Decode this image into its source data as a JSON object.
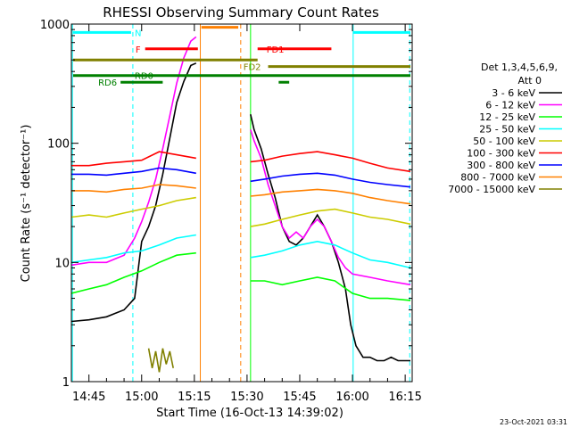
{
  "chart_data": {
    "type": "line",
    "title": "RHESSI Observing Summary Count Rates",
    "xlabel": "Start Time (16-Oct-13 14:39:02)",
    "ylabel": "Count Rate (s⁻¹ detector⁻¹)",
    "yscale": "log",
    "ylim": [
      1,
      1000
    ],
    "xlim_minutes": [
      40,
      137
    ],
    "x_ticks": [
      {
        "label": "14:45",
        "minutes": 45
      },
      {
        "label": "15:00",
        "minutes": 60
      },
      {
        "label": "15:15",
        "minutes": 75
      },
      {
        "label": "15:30",
        "minutes": 90
      },
      {
        "label": "15:45",
        "minutes": 105
      },
      {
        "label": "16:00",
        "minutes": 120
      },
      {
        "label": "16:15",
        "minutes": 135
      }
    ],
    "y_ticks": [
      {
        "label": "1",
        "value": 1
      },
      {
        "label": "10",
        "value": 10
      },
      {
        "label": "100",
        "value": 100
      },
      {
        "label": "1000",
        "value": 1000
      }
    ],
    "legend_title": [
      "Det 1,3,4,5,6,9,",
      "Att 0"
    ],
    "legend_position": "right",
    "series": [
      {
        "name": "3 - 6 keV",
        "color": "#000000",
        "x": [
          40,
          45,
          50,
          55,
          58,
          60,
          62,
          64,
          66,
          68,
          70,
          72,
          74,
          75.5,
          91,
          92,
          94,
          96,
          98,
          100,
          102,
          104,
          106,
          108,
          110,
          112,
          114,
          116,
          118,
          119.5,
          121,
          123,
          125,
          127,
          129,
          131,
          133,
          135,
          136.5
        ],
        "y": [
          3.2,
          3.3,
          3.5,
          4,
          5,
          15,
          20,
          30,
          55,
          110,
          220,
          330,
          450,
          470,
          175,
          130,
          90,
          55,
          35,
          20,
          15,
          14,
          16,
          20,
          25,
          20,
          15,
          10,
          6,
          3,
          2,
          1.6,
          1.6,
          1.5,
          1.5,
          1.6,
          1.5,
          1.5,
          1.5
        ]
      },
      {
        "name": "6 - 12 keV",
        "color": "#ff00ff",
        "x": [
          40,
          45,
          50,
          55,
          58,
          60,
          62,
          64,
          66,
          68,
          70,
          72,
          74,
          75.5,
          91,
          92,
          94,
          96,
          98,
          100,
          102,
          104,
          106,
          108,
          110,
          112,
          114,
          116,
          118,
          120,
          125,
          130,
          136.5
        ],
        "y": [
          9.5,
          10,
          10,
          11.5,
          16,
          22,
          32,
          50,
          90,
          170,
          320,
          520,
          720,
          780,
          130,
          105,
          75,
          45,
          30,
          20,
          16,
          18,
          16,
          20,
          23,
          20,
          15,
          11,
          9,
          8,
          7.5,
          7,
          6.5
        ]
      },
      {
        "name": "12 - 25 keV",
        "color": "#00ff00",
        "x": [
          40,
          45,
          50,
          55,
          60,
          65,
          70,
          75.5,
          91,
          95,
          100,
          105,
          110,
          115,
          120,
          125,
          130,
          136.5
        ],
        "y": [
          5.5,
          6,
          6.5,
          7.5,
          8.5,
          10,
          11.5,
          12,
          7,
          7,
          6.5,
          7,
          7.5,
          7,
          5.5,
          5,
          5,
          4.8
        ]
      },
      {
        "name": "25 - 50 keV",
        "color": "#00ffff",
        "x": [
          40,
          45,
          50,
          55,
          60,
          65,
          70,
          75.5,
          91,
          95,
          100,
          105,
          110,
          115,
          120,
          125,
          130,
          136.5
        ],
        "y": [
          10,
          10.5,
          11,
          12,
          12.5,
          14,
          16,
          17,
          11,
          11.5,
          12.5,
          14,
          15,
          14,
          12,
          10.5,
          10,
          9
        ]
      },
      {
        "name": "50 - 100 keV",
        "color": "#cccc00",
        "x": [
          40,
          45,
          50,
          55,
          60,
          65,
          70,
          75.5,
          91,
          95,
          100,
          105,
          110,
          115,
          120,
          125,
          130,
          136.5
        ],
        "y": [
          24,
          25,
          24,
          26,
          28,
          30,
          33,
          35,
          20,
          21,
          23,
          25,
          27,
          28,
          26,
          24,
          23,
          21
        ]
      },
      {
        "name": "100 - 300 keV",
        "color": "#ff0000",
        "x": [
          40,
          45,
          50,
          55,
          60,
          65,
          70,
          75.5,
          91,
          95,
          100,
          105,
          110,
          115,
          120,
          125,
          130,
          136.5
        ],
        "y": [
          65,
          65,
          68,
          70,
          72,
          85,
          80,
          75,
          70,
          72,
          78,
          82,
          85,
          80,
          75,
          68,
          62,
          58
        ]
      },
      {
        "name": "300 - 800 keV",
        "color": "#0000ff",
        "x": [
          40,
          45,
          50,
          55,
          60,
          65,
          70,
          75.5,
          91,
          95,
          100,
          105,
          110,
          115,
          120,
          125,
          130,
          136.5
        ],
        "y": [
          55,
          55,
          54,
          56,
          58,
          62,
          60,
          56,
          48,
          50,
          53,
          55,
          56,
          54,
          50,
          47,
          45,
          43
        ]
      },
      {
        "name": "800 - 7000 keV",
        "color": "#ff8000",
        "x": [
          40,
          45,
          50,
          55,
          60,
          65,
          70,
          75.5,
          91,
          95,
          100,
          105,
          110,
          115,
          120,
          125,
          130,
          136.5
        ],
        "y": [
          40,
          40,
          39,
          41,
          42,
          45,
          44,
          42,
          36,
          37,
          39,
          40,
          41,
          40,
          38,
          35,
          33,
          31
        ]
      },
      {
        "name": "7000 - 15000 keV",
        "color": "#808000",
        "x": [
          62,
          63,
          64,
          65,
          66,
          67,
          68,
          69
        ],
        "y": [
          1.9,
          1.3,
          1.8,
          1.2,
          1.9,
          1.4,
          1.8,
          1.3
        ]
      }
    ],
    "flags": [
      {
        "label": "N",
        "color": "#00ffff",
        "x_start": 40.5,
        "x_end": 57,
        "y": 850
      },
      {
        "label": "",
        "color": "#00ffff",
        "x_start": 120.2,
        "x_end": 136.5,
        "y": 850
      },
      {
        "label": "F",
        "color": "#ff0000",
        "x_start": 61,
        "x_end": 76,
        "y": 620
      },
      {
        "label": "",
        "color": "#ff8000",
        "x_start": 77,
        "x_end": 87.5,
        "y": 940
      },
      {
        "label": "FD1",
        "color": "#ff0000",
        "x_start": 93,
        "x_end": 114,
        "y": 620
      },
      {
        "label": "",
        "color": "#808000",
        "x_start": 40.5,
        "x_end": 93,
        "y": 500
      },
      {
        "label": "FD2",
        "color": "#808000",
        "x_start": 96,
        "x_end": 136.5,
        "y": 440
      },
      {
        "label": "RD0",
        "color": "#008000",
        "x_start": 40.5,
        "x_end": 136.5,
        "y": 370
      },
      {
        "label": "RD6",
        "color": "#008000",
        "x_start": 54,
        "x_end": 66,
        "y": 325
      },
      {
        "label": "",
        "color": "#008000",
        "x_start": 99,
        "x_end": 102,
        "y": 325
      }
    ],
    "vertical_lines": [
      {
        "x": 40.3,
        "color": "#00ffff",
        "style": "solid"
      },
      {
        "x": 57.5,
        "color": "#00ffff",
        "style": "dashed"
      },
      {
        "x": 76.7,
        "color": "#ff8000",
        "style": "solid"
      },
      {
        "x": 88.2,
        "color": "#ff8000",
        "style": "dashed"
      },
      {
        "x": 91,
        "color": "#00ff00",
        "style": "solid"
      },
      {
        "x": 120.2,
        "color": "#00ffff",
        "style": "solid"
      },
      {
        "x": 136.3,
        "color": "#00ffff",
        "style": "dashed"
      }
    ],
    "grid": false
  },
  "footer_date": "23-Oct-2021 03:31"
}
